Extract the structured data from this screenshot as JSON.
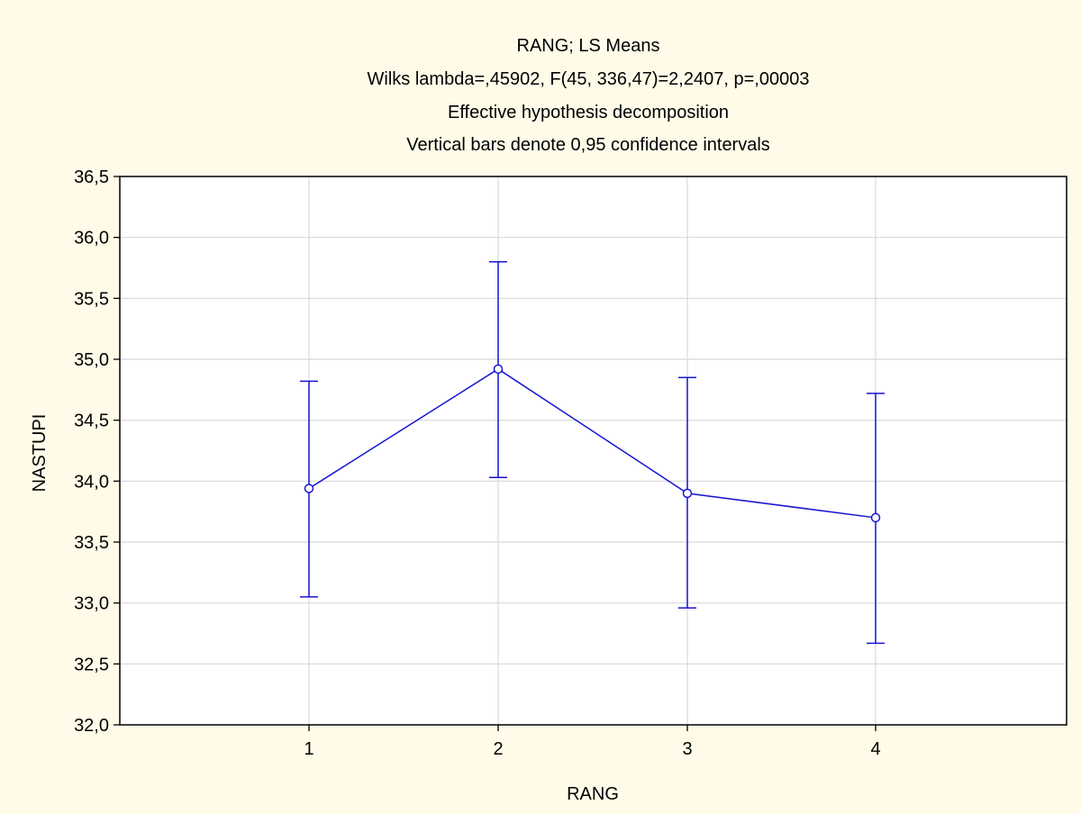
{
  "chart_data": {
    "type": "line",
    "title_lines": [
      "RANG; LS Means",
      "Wilks lambda=,45902, F(45, 336,47)=2,2407, p=,00003",
      "Effective hypothesis decomposition",
      "Vertical bars denote 0,95 confidence intervals"
    ],
    "xlabel": "RANG",
    "ylabel": "NASTUPI",
    "categories": [
      "1",
      "2",
      "3",
      "4"
    ],
    "series": [
      {
        "means": [
          33.94,
          34.92,
          33.9,
          33.7
        ],
        "lower": [
          33.05,
          34.03,
          32.96,
          32.67
        ],
        "upper": [
          34.82,
          35.8,
          34.85,
          34.72
        ]
      }
    ],
    "ylim": [
      32.0,
      36.5
    ],
    "yticks": [
      32.0,
      32.5,
      33.0,
      33.5,
      34.0,
      34.5,
      35.0,
      35.5,
      36.0,
      36.5
    ],
    "ytick_labels": [
      "32,0",
      "32,5",
      "33,0",
      "33,5",
      "34,0",
      "34,5",
      "35,0",
      "35,5",
      "36,0",
      "36,5"
    ],
    "grid": true,
    "colors": {
      "page_background": "#fffbe8",
      "plot_background": "#ffffff",
      "series": "#1515d4",
      "grid": "#d8d8d8",
      "frame": "#000000"
    }
  }
}
